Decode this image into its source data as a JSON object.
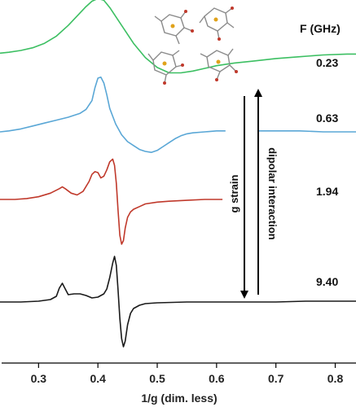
{
  "chart_data": {
    "type": "line",
    "xlabel": "1/g (dim. less)",
    "xlim": [
      0.235,
      0.835
    ],
    "xticks": [
      "0.3",
      "0.4",
      "0.5",
      "0.6",
      "0.7",
      "0.8"
    ],
    "xtick_values": [
      0.3,
      0.4,
      0.5,
      0.6,
      0.7,
      0.8
    ],
    "legend_header": "F (GHz)",
    "series": [
      {
        "name": "0.23",
        "color": "#3cbf62",
        "x": [
          0.235,
          0.25,
          0.27,
          0.29,
          0.31,
          0.33,
          0.35,
          0.37,
          0.38,
          0.39,
          0.4,
          0.41,
          0.42,
          0.44,
          0.46,
          0.48,
          0.5,
          0.52,
          0.54,
          0.56,
          0.58,
          0.6,
          0.63,
          0.66,
          0.7,
          0.74,
          0.78,
          0.82,
          0.835
        ],
        "offset": 0.62,
        "y": [
          0.07,
          0.08,
          0.1,
          0.13,
          0.18,
          0.26,
          0.38,
          0.52,
          0.59,
          0.65,
          0.68,
          0.66,
          0.58,
          0.38,
          0.18,
          0.02,
          -0.09,
          -0.15,
          -0.15,
          -0.13,
          -0.1,
          -0.07,
          -0.04,
          -0.02,
          0.01,
          0.03,
          0.05,
          0.06,
          0.06
        ]
      },
      {
        "name": "0.63",
        "color": "#5aa7d6",
        "x": [
          0.235,
          0.25,
          0.27,
          0.29,
          0.31,
          0.33,
          0.35,
          0.36,
          0.37,
          0.38,
          0.39,
          0.395,
          0.4,
          0.405,
          0.41,
          0.415,
          0.42,
          0.43,
          0.44,
          0.45,
          0.46,
          0.47,
          0.48,
          0.49,
          0.5,
          0.51,
          0.52,
          0.53,
          0.54,
          0.55,
          0.56,
          0.58,
          0.6,
          0.615
        ],
        "y": [
          0.0,
          0.01,
          0.03,
          0.06,
          0.09,
          0.12,
          0.15,
          0.17,
          0.19,
          0.23,
          0.32,
          0.45,
          0.55,
          0.56,
          0.5,
          0.38,
          0.24,
          0.08,
          -0.03,
          -0.1,
          -0.14,
          -0.18,
          -0.2,
          -0.21,
          -0.19,
          -0.15,
          -0.11,
          -0.07,
          -0.04,
          -0.02,
          -0.01,
          0.0,
          0.01,
          0.01
        ]
      },
      {
        "name": "0.63 (right segment)",
        "color": "#5aa7d6",
        "x": [
          0.67,
          0.7,
          0.74,
          0.78,
          0.82,
          0.835
        ],
        "y": [
          0.01,
          0.01,
          0.01,
          0.0,
          0.0,
          0.0
        ]
      },
      {
        "name": "1.94",
        "color": "#c0392b",
        "x": [
          0.235,
          0.26,
          0.28,
          0.3,
          0.32,
          0.335,
          0.34,
          0.345,
          0.355,
          0.365,
          0.375,
          0.385,
          0.39,
          0.395,
          0.4,
          0.405,
          0.41,
          0.415,
          0.42,
          0.425,
          0.428,
          0.431,
          0.434,
          0.437,
          0.44,
          0.443,
          0.446,
          0.45,
          0.455,
          0.46,
          0.47,
          0.48,
          0.5,
          0.52,
          0.55,
          0.58,
          0.61
        ],
        "y": [
          0.0,
          0.0,
          0.01,
          0.03,
          0.07,
          0.12,
          0.14,
          0.12,
          0.07,
          0.05,
          0.09,
          0.2,
          0.28,
          0.31,
          0.3,
          0.24,
          0.26,
          0.33,
          0.42,
          0.45,
          0.38,
          0.18,
          -0.12,
          -0.4,
          -0.5,
          -0.46,
          -0.32,
          -0.2,
          -0.14,
          -0.11,
          -0.08,
          -0.05,
          -0.03,
          -0.02,
          -0.01,
          0.0,
          0.0
        ]
      },
      {
        "name": "9.40",
        "color": "#1a1a1a",
        "x": [
          0.235,
          0.27,
          0.3,
          0.32,
          0.33,
          0.335,
          0.34,
          0.345,
          0.35,
          0.36,
          0.37,
          0.38,
          0.39,
          0.4,
          0.41,
          0.415,
          0.42,
          0.425,
          0.428,
          0.431,
          0.434,
          0.437,
          0.44,
          0.443,
          0.446,
          0.45,
          0.455,
          0.46,
          0.47,
          0.48,
          0.5,
          0.55,
          0.6,
          0.65,
          0.7,
          0.75,
          0.8,
          0.835
        ],
        "y": [
          0.0,
          0.0,
          0.01,
          0.03,
          0.07,
          0.17,
          0.23,
          0.16,
          0.09,
          0.1,
          0.1,
          0.08,
          0.05,
          0.06,
          0.1,
          0.16,
          0.3,
          0.48,
          0.56,
          0.45,
          0.15,
          -0.2,
          -0.45,
          -0.55,
          -0.48,
          -0.28,
          -0.14,
          -0.08,
          -0.04,
          -0.02,
          -0.01,
          0.0,
          0.0,
          0.0,
          0.0,
          0.01,
          0.01,
          0.01
        ]
      }
    ],
    "freq_labels": [
      "0.23",
      "0.63",
      "1.94",
      "9.40"
    ],
    "annotations": {
      "down_arrow_label": "g strain",
      "up_arrow_label": "dipolar interaction"
    }
  },
  "colors": {
    "axis": "#000000",
    "green": "#3cbf62",
    "blue": "#5aa7d6",
    "red": "#c0392b",
    "black": "#1a1a1a"
  }
}
